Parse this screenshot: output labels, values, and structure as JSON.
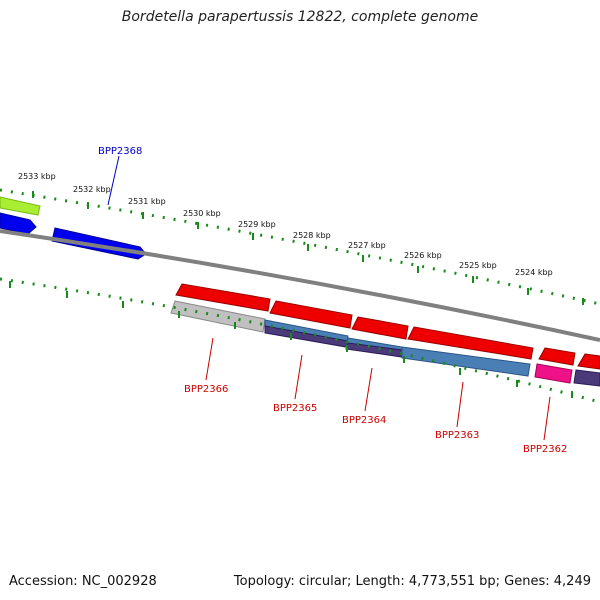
{
  "title": "Bordetella parapertussis 12822, complete genome",
  "footer": {
    "accession": "Accession: NC_002928",
    "summary": "Topology: circular; Length: 4,773,551 bp; Genes: 4,249"
  },
  "scale_labels": [
    "2533 kbp",
    "2532 kbp",
    "2531 kbp",
    "2530 kbp",
    "2529 kbp",
    "2528 kbp",
    "2527 kbp",
    "2526 kbp",
    "2525 kbp",
    "2524 kbp"
  ],
  "gene_labels": {
    "bpp2368": "BPP2368",
    "bpp2366": "BPP2366",
    "bpp2365": "BPP2365",
    "bpp2364": "BPP2364",
    "bpp2363": "BPP2363",
    "bpp2362": "BPP2362"
  },
  "colors": {
    "forward_label": "#0000cc",
    "reverse_label": "#cc0000",
    "backbone": "#808080",
    "tick": "#1a8a1a",
    "cds_red": "#ee0000",
    "cds_blue": "#0000ee",
    "cds_lime": "#aaee33",
    "rna_gray": "#c0c0c0",
    "steel_blue": "#4a7fb5",
    "dark_purple": "#4a3a7a",
    "magenta": "#ee1188"
  }
}
